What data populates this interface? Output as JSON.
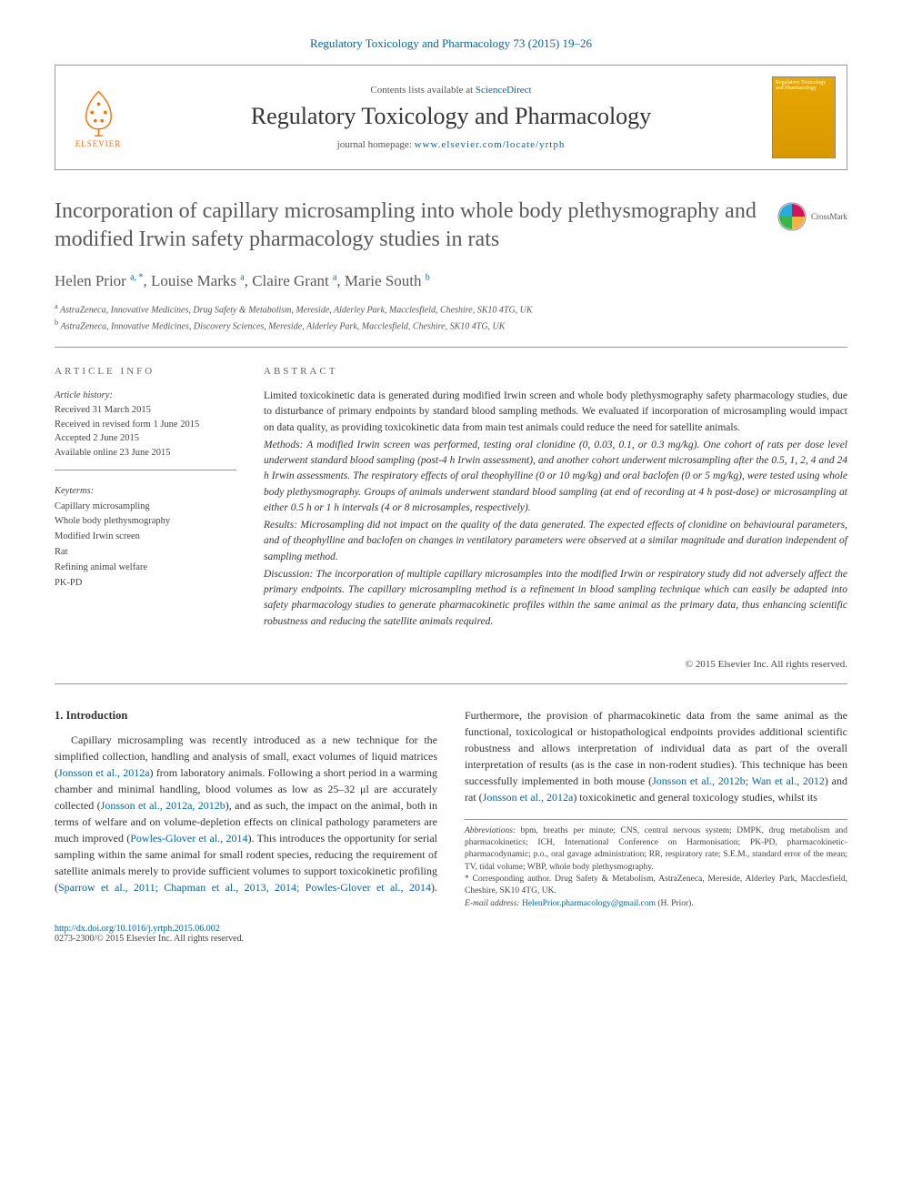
{
  "journal": {
    "citation": "Regulatory Toxicology and Pharmacology 73 (2015) 19–26",
    "contents_prefix": "Contents lists available at ",
    "contents_link": "ScienceDirect",
    "title": "Regulatory Toxicology and Pharmacology",
    "homepage_prefix": "journal homepage: ",
    "homepage_url": "www.elsevier.com/locate/yrtph",
    "publisher": "ELSEVIER",
    "cover_text": "Regulatory Toxicology and Pharmacology"
  },
  "crossmark": "CrossMark",
  "article": {
    "title": "Incorporation of capillary microsampling into whole body plethysmography and modified Irwin safety pharmacology studies in rats",
    "authors_html": "Helen Prior <sup>a, *</sup>, Louise Marks <sup>a</sup>, Claire Grant <sup>a</sup>, Marie South <sup>b</sup>",
    "affiliations": [
      "a AstraZeneca, Innovative Medicines, Drug Safety & Metabolism, Mereside, Alderley Park, Macclesfield, Cheshire, SK10 4TG, UK",
      "b AstraZeneca, Innovative Medicines, Discovery Sciences, Mereside, Alderley Park, Macclesfield, Cheshire, SK10 4TG, UK"
    ]
  },
  "info": {
    "heading": "ARTICLE INFO",
    "history_label": "Article history:",
    "received": "Received 31 March 2015",
    "revised": "Received in revised form 1 June 2015",
    "accepted": "Accepted 2 June 2015",
    "online": "Available online 23 June 2015",
    "keyterms_label": "Keyterms:",
    "keyterms": [
      "Capillary microsampling",
      "Whole body plethysmography",
      "Modified Irwin screen",
      "Rat",
      "Refining animal welfare",
      "PK-PD"
    ]
  },
  "abstract": {
    "heading": "ABSTRACT",
    "intro": "Limited toxicokinetic data is generated during modified Irwin screen and whole body plethysmography safety pharmacology studies, due to disturbance of primary endpoints by standard blood sampling methods. We evaluated if incorporation of microsampling would impact on data quality, as providing toxicokinetic data from main test animals could reduce the need for satellite animals.",
    "methods": "Methods: A modified Irwin screen was performed, testing oral clonidine (0, 0.03, 0.1, or 0.3 mg/kg). One cohort of rats per dose level underwent standard blood sampling (post-4 h Irwin assessment), and another cohort underwent microsampling after the 0.5, 1, 2, 4 and 24 h Irwin assessments. The respiratory effects of oral theophylline (0 or 10 mg/kg) and oral baclofen (0 or 5 mg/kg), were tested using whole body plethysmography. Groups of animals underwent standard blood sampling (at end of recording at 4 h post-dose) or microsampling at either 0.5 h or 1 h intervals (4 or 8 microsamples, respectively).",
    "results": "Results: Microsampling did not impact on the quality of the data generated. The expected effects of clonidine on behavioural parameters, and of theophylline and baclofen on changes in ventilatory parameters were observed at a similar magnitude and duration independent of sampling method.",
    "discussion": "Discussion: The incorporation of multiple capillary microsamples into the modified Irwin or respiratory study did not adversely affect the primary endpoints. The capillary microsampling method is a refinement in blood sampling technique which can easily be adapted into safety pharmacology studies to generate pharmacokinetic profiles within the same animal as the primary data, thus enhancing scientific robustness and reducing the satellite animals required.",
    "copyright": "© 2015 Elsevier Inc. All rights reserved."
  },
  "body": {
    "section_title": "1. Introduction",
    "p1_pre": "Capillary microsampling was recently introduced as a new technique for the simplified collection, handling and analysis of small, exact volumes of liquid matrices (",
    "p1_link1": "Jonsson et al., 2012a",
    "p1_mid": ") from laboratory animals. Following a short period in a warming chamber and minimal handling, blood volumes as low as 25–32 μl are",
    "p2_pre": "accurately collected (",
    "p2_link1": "Jonsson et al., 2012a, 2012b",
    "p2_mid1": "), and as such, the impact on the animal, both in terms of welfare and on volume-depletion effects on clinical pathology parameters are much improved (",
    "p2_link2": "Powles-Glover et al., 2014",
    "p2_mid2": "). This introduces the opportunity for serial sampling within the same animal for small rodent species, reducing the requirement of satellite animals merely to provide sufficient volumes to support toxicokinetic profiling (",
    "p2_link3": "Sparrow et al., 2011; Chapman et al., 2013, 2014; Powles-Glover et al., 2014",
    "p2_mid3": "). Furthermore, the provision of pharmacokinetic data from the same animal as the functional, toxicological or histopathological endpoints provides additional scientific robustness and allows interpretation of individual data as part of the overall interpretation of results (as is the case in non-rodent studies). This technique has been successfully implemented in both mouse (",
    "p2_link4": "Jonsson et al., 2012b; Wan et al., 2012",
    "p2_mid4": ") and rat (",
    "p2_link5": "Jonsson et al., 2012a",
    "p2_end": ") toxicokinetic and general toxicology studies, whilst its"
  },
  "footnotes": {
    "abbrev_label": "Abbreviations:",
    "abbrev_text": " bpm, breaths per minute; CNS, central nervous system; DMPK, drug metabolism and pharmacokinetics; ICH, International Conference on Harmonisation; PK-PD, pharmacokinetic-pharmacodynamic; p.o., oral gavage administration; RR, respiratory rate; S.E.M., standard error of the mean; TV, tidal volume; WBP, whole body plethysmography.",
    "corr_label": "* Corresponding author.",
    "corr_text": " Drug Safety & Metabolism, AstraZeneca, Mereside, Alderley Park, Macclesfield, Cheshire, SK10 4TG, UK.",
    "email_label": "E-mail address: ",
    "email": "HelenPrior.pharmacology@gmail.com",
    "email_suffix": " (H. Prior)."
  },
  "footer": {
    "doi": "http://dx.doi.org/10.1016/j.yrtph.2015.06.002",
    "issn": "0273-2300/© 2015 Elsevier Inc. All rights reserved."
  },
  "colors": {
    "link": "#0066a6",
    "elsevier": "#ff6c00",
    "heading": "#5a5a5a",
    "cover": "#e8a800"
  }
}
